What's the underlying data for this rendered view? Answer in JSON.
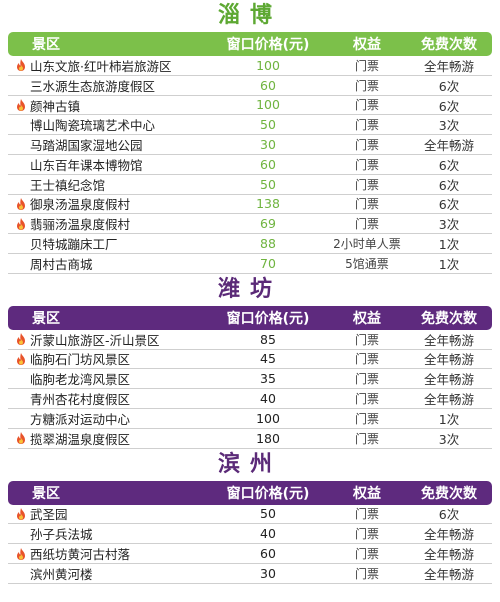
{
  "header_labels": {
    "name": "景区",
    "price": "窗口价格(元)",
    "right": "权益",
    "times": "免费次数"
  },
  "sections": [
    {
      "city": "淄博",
      "theme": "green",
      "rows": [
        {
          "hot": true,
          "name": "山东文旅·红叶柿岩旅游区",
          "price": "100",
          "right": "门票",
          "times": "全年畅游"
        },
        {
          "hot": false,
          "name": "三水源生态旅游度假区",
          "price": "60",
          "right": "门票",
          "times": "6次"
        },
        {
          "hot": true,
          "name": "颜神古镇",
          "price": "100",
          "right": "门票",
          "times": "6次"
        },
        {
          "hot": false,
          "name": "博山陶瓷琉璃艺术中心",
          "price": "50",
          "right": "门票",
          "times": "3次"
        },
        {
          "hot": false,
          "name": "马踏湖国家湿地公园",
          "price": "30",
          "right": "门票",
          "times": "全年畅游"
        },
        {
          "hot": false,
          "name": "山东百年课本博物馆",
          "price": "60",
          "right": "门票",
          "times": "6次"
        },
        {
          "hot": false,
          "name": "王士禛纪念馆",
          "price": "50",
          "right": "门票",
          "times": "6次"
        },
        {
          "hot": true,
          "name": "御泉汤温泉度假村",
          "price": "138",
          "right": "门票",
          "times": "6次"
        },
        {
          "hot": true,
          "name": "翡骊汤温泉度假村",
          "price": "69",
          "right": "门票",
          "times": "3次"
        },
        {
          "hot": false,
          "name": "贝特城蹦床工厂",
          "price": "88",
          "right": "2小时单人票",
          "times": "1次"
        },
        {
          "hot": false,
          "name": "周村古商城",
          "price": "70",
          "right": "5馆通票",
          "times": "1次"
        }
      ]
    },
    {
      "city": "潍坊",
      "theme": "purple",
      "rows": [
        {
          "hot": true,
          "name": "沂蒙山旅游区-沂山景区",
          "price": "85",
          "right": "门票",
          "times": "全年畅游"
        },
        {
          "hot": true,
          "name": "临朐石门坊风景区",
          "price": "45",
          "right": "门票",
          "times": "全年畅游"
        },
        {
          "hot": false,
          "name": "临朐老龙湾风景区",
          "price": "35",
          "right": "门票",
          "times": "全年畅游"
        },
        {
          "hot": false,
          "name": "青州杏花村度假区",
          "price": "40",
          "right": "门票",
          "times": "全年畅游"
        },
        {
          "hot": false,
          "name": "方糖派对运动中心",
          "price": "100",
          "right": "门票",
          "times": "1次"
        },
        {
          "hot": true,
          "name": "揽翠湖温泉度假区",
          "price": "180",
          "right": "门票",
          "times": "3次"
        }
      ]
    },
    {
      "city": "滨州",
      "theme": "purple",
      "rows": [
        {
          "hot": true,
          "name": "武圣园",
          "price": "50",
          "right": "门票",
          "times": "6次"
        },
        {
          "hot": false,
          "name": "孙子兵法城",
          "price": "40",
          "right": "门票",
          "times": "全年畅游"
        },
        {
          "hot": true,
          "name": "西纸坊黄河古村落",
          "price": "60",
          "right": "门票",
          "times": "全年畅游"
        },
        {
          "hot": false,
          "name": "滨州黄河楼",
          "price": "30",
          "right": "门票",
          "times": "全年畅游"
        }
      ]
    }
  ]
}
